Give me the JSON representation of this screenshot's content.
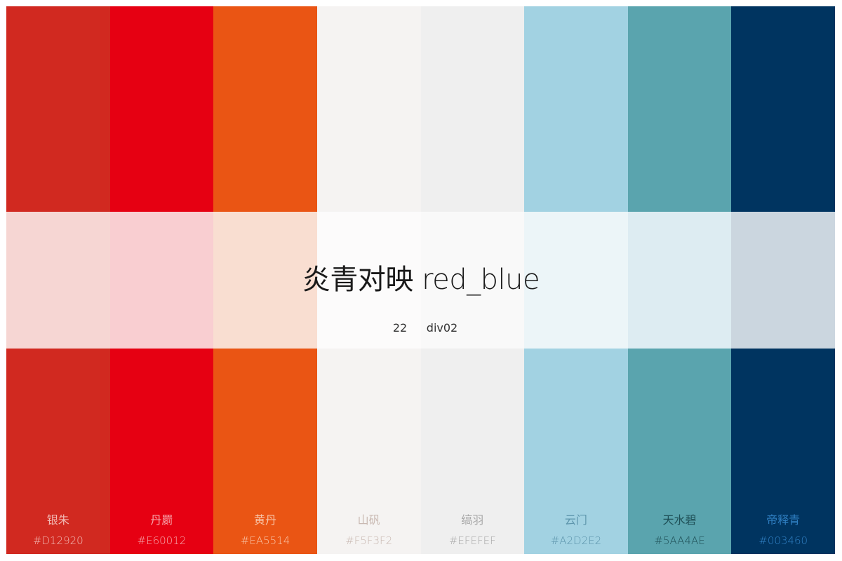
{
  "palette": {
    "title": "炎青对映 red_blue",
    "count": "22",
    "type": "div02",
    "swatches": [
      {
        "name": "银朱",
        "hex": "#D12920",
        "label_color": "#F1B9B4",
        "tint": "#F6D6D3"
      },
      {
        "name": "丹罽",
        "hex": "#E60012",
        "label_color": "#F6A7AE",
        "tint": "#F9CED1"
      },
      {
        "name": "黄丹",
        "hex": "#EA5514",
        "label_color": "#F8C6AA",
        "tint": "#F9DED1"
      },
      {
        "name": "山矾",
        "hex": "#F5F3F2",
        "label_color": "#C9B9B2",
        "tint": "#FCFBFB"
      },
      {
        "name": "缟羽",
        "hex": "#EFEFEF",
        "label_color": "#A9A9A9",
        "tint": "#F9F9F9"
      },
      {
        "name": "云门",
        "hex": "#A2D2E2",
        "label_color": "#5D95AC",
        "tint": "#ECF5F8"
      },
      {
        "name": "天水碧",
        "hex": "#5AA4AE",
        "label_color": "#1E4F56",
        "tint": "#DDECF2"
      },
      {
        "name": "帝释青",
        "hex": "#003460",
        "label_color": "#2F7FC2",
        "tint": "#CBD6DF"
      }
    ]
  }
}
